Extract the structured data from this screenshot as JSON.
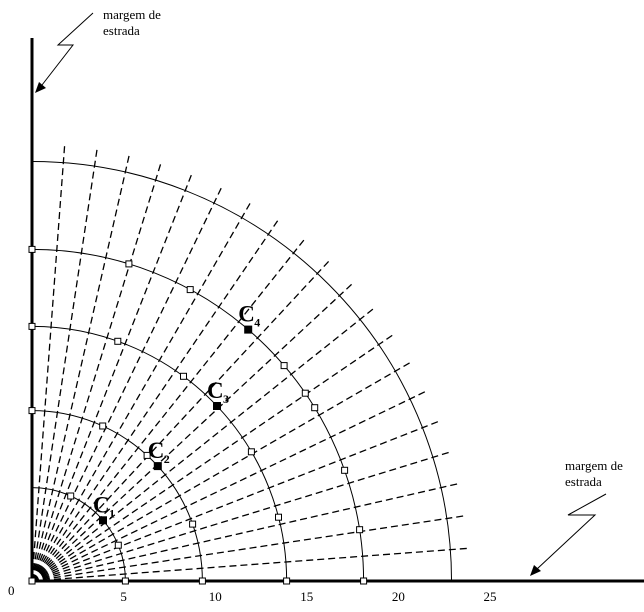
{
  "scale": {
    "max": 25
  },
  "origin_label": "0",
  "tick_labels": [
    {
      "value": 5,
      "text": "5"
    },
    {
      "value": 10,
      "text": "10"
    },
    {
      "value": 15,
      "text": "15"
    },
    {
      "value": 20,
      "text": "20"
    },
    {
      "value": 25,
      "text": "25"
    }
  ],
  "arc_radii": [
    5.1,
    9.3,
    13.9,
    18.1,
    22.9
  ],
  "radial_line_count": 20,
  "margins": {
    "vertical": {
      "line1": "margem de",
      "line2": "estrada"
    },
    "horizontal": {
      "line1": "margem de",
      "line2": "estrada"
    }
  },
  "stations": [
    {
      "letter": "C",
      "subscript": "1",
      "radius": 5.1,
      "angle_deg": 40.5
    },
    {
      "letter": "C",
      "subscript": "2",
      "radius": 9.3,
      "angle_deg": 42.4
    },
    {
      "letter": "C",
      "subscript": "3",
      "radius": 13.9,
      "angle_deg": 43.4
    },
    {
      "letter": "C",
      "subscript": "4",
      "radius": 18.1,
      "angle_deg": 49.3
    }
  ],
  "sample_points": [
    {
      "radius": 5.1,
      "angles": [
        0,
        22.5,
        65.5
      ]
    },
    {
      "radius": 9.3,
      "angles": [
        0,
        19.5,
        47.5,
        65.5,
        90
      ]
    },
    {
      "radius": 13.9,
      "angles": [
        0,
        14.5,
        30.5,
        53.5,
        70.3,
        90
      ]
    },
    {
      "radius": 18.1,
      "angles": [
        0,
        8.9,
        19.5,
        31.5,
        34.5,
        40.5,
        61.5,
        73,
        90
      ]
    }
  ]
}
